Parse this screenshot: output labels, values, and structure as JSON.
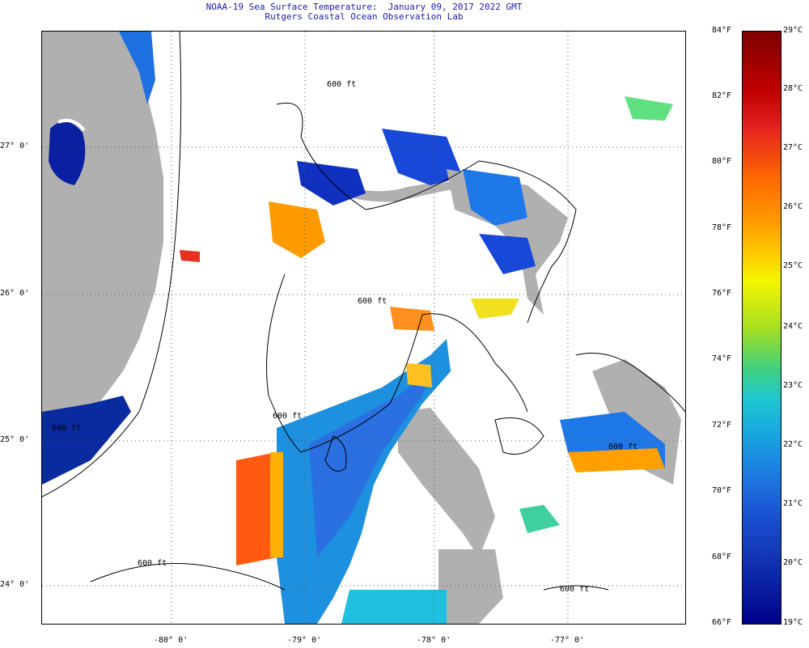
{
  "header": {
    "title": "NOAA-19 Sea Surface Temperature:  January 09, 2017 2022 GMT",
    "subtitle": "Rutgers Coastal Ocean Observation Lab"
  },
  "axes": {
    "lat_labels": [
      "27° 0'",
      "26° 0'",
      "25° 0'",
      "24° 0'"
    ],
    "lon_labels": [
      "-80° 0'",
      "-79° 0'",
      "-78° 0'",
      "-77° 0'"
    ]
  },
  "contour_labels": [
    "600 ft",
    "600 ft",
    "600 ft",
    "600 ft",
    "600 ft",
    "600 ft",
    "600 ft"
  ],
  "colorbar": {
    "fahrenheit": [
      "84°F",
      "82°F",
      "80°F",
      "78°F",
      "76°F",
      "74°F",
      "72°F",
      "70°F",
      "68°F",
      "66°F"
    ],
    "celsius": [
      "29°C",
      "28°C",
      "27°C",
      "26°C",
      "25°C",
      "24°C",
      "23°C",
      "22°C",
      "21°C",
      "20°C",
      "19°C"
    ]
  },
  "colors": {
    "land": "#b0b0b0",
    "cloud": "#ffffff",
    "warm": "#ff6000",
    "cool": "#1e90e0",
    "cold": "#0020a0"
  }
}
